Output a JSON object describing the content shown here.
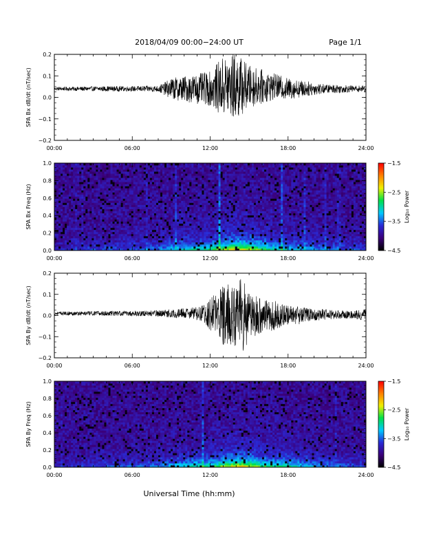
{
  "header": {
    "title": "2018/04/09  00:00−24:00 UT",
    "page": "Page 1/1"
  },
  "footer": {
    "xlabel": "Universal Time (hh:mm)"
  },
  "colors": {
    "trace": "#000000",
    "colormap": [
      "#000000",
      "#3b007a",
      "#2a2ad6",
      "#00c8ff",
      "#00e04a",
      "#f0f000",
      "#ff8000",
      "#ff0000"
    ]
  },
  "chart_data": [
    {
      "type": "line",
      "ylabel": "SPA Bx dB/dt (nT/sec)",
      "x_ticks": [
        "00:00",
        "06:00",
        "12:00",
        "18:00",
        "24:00"
      ],
      "xlim": [
        0,
        24
      ],
      "ylim": [
        -0.2,
        0.2
      ],
      "y_ticks": [
        "0.2",
        "0.1",
        "0.0",
        "−0.1",
        "−0.2"
      ],
      "y_tick_values": [
        0.2,
        0.1,
        0.0,
        -0.1,
        -0.2
      ],
      "series": [
        {
          "x": [
            0,
            2,
            4,
            6,
            8,
            8.5,
            9,
            10,
            11,
            12,
            13,
            13.5,
            14,
            14.5,
            15,
            16,
            17,
            18,
            19,
            20,
            21,
            22,
            23,
            24
          ],
          "center": [
            0.04,
            0.04,
            0.04,
            0.04,
            0.04,
            0.04,
            0.04,
            0.04,
            0.04,
            0.04,
            0.05,
            0.05,
            0.05,
            0.05,
            0.05,
            0.05,
            0.05,
            0.04,
            0.04,
            0.04,
            0.04,
            0.04,
            0.04,
            0.04
          ],
          "amplitude": [
            0.008,
            0.01,
            0.012,
            0.012,
            0.015,
            0.03,
            0.05,
            0.06,
            0.07,
            0.08,
            0.14,
            0.15,
            0.16,
            0.13,
            0.1,
            0.08,
            0.06,
            0.05,
            0.04,
            0.03,
            0.02,
            0.02,
            0.015,
            0.015
          ]
        }
      ]
    },
    {
      "type": "heatmap",
      "ylabel": "SPA Bx Freq (Hz)",
      "x_ticks": [
        "00:00",
        "06:00",
        "12:00",
        "18:00",
        "24:00"
      ],
      "xlim": [
        0,
        24
      ],
      "ylim": [
        0.0,
        1.0
      ],
      "y_ticks": [
        "1.0",
        "0.8",
        "0.6",
        "0.4",
        "0.2",
        "0.0"
      ],
      "y_tick_values": [
        1.0,
        0.8,
        0.6,
        0.4,
        0.2,
        0.0
      ],
      "colorbar": {
        "label": "Log₁₀ Power",
        "ticks": [
          "−1.5",
          "−2.5",
          "−3.5",
          "−4.5"
        ],
        "tick_values": [
          -1.5,
          -2.5,
          -3.5,
          -4.5
        ],
        "range": [
          -4.5,
          -1.5
        ]
      },
      "activity_hours": [
        0,
        3,
        6,
        8,
        10,
        12,
        13,
        14,
        15,
        16,
        17,
        18,
        20,
        22,
        24
      ],
      "activity": [
        0.1,
        0.2,
        0.25,
        0.3,
        0.5,
        0.6,
        0.8,
        0.95,
        0.9,
        0.7,
        0.55,
        0.5,
        0.35,
        0.25,
        0.2
      ]
    },
    {
      "type": "line",
      "ylabel": "SPA By dB/dt (nT/sec)",
      "x_ticks": [
        "00:00",
        "06:00",
        "12:00",
        "18:00",
        "24:00"
      ],
      "xlim": [
        0,
        24
      ],
      "ylim": [
        -0.2,
        0.2
      ],
      "y_ticks": [
        "0.2",
        "0.1",
        "0.0",
        "−0.1",
        "−0.2"
      ],
      "y_tick_values": [
        0.2,
        0.1,
        0.0,
        -0.1,
        -0.2
      ],
      "series": [
        {
          "x": [
            0,
            2,
            4,
            6,
            8,
            9,
            10,
            11,
            11.5,
            12,
            12.5,
            13,
            14,
            14.5,
            15,
            16,
            17,
            18,
            19,
            20,
            21,
            22,
            23,
            24
          ],
          "center": [
            0.01,
            0.01,
            0.01,
            0.01,
            0.01,
            0.01,
            0.01,
            0.01,
            0.01,
            0.005,
            0.0,
            0.0,
            0.0,
            0.0,
            0.0,
            0.0,
            0.0,
            0.0,
            0.0,
            0.005,
            0.005,
            0.005,
            0.005,
            0.005
          ],
          "amplitude": [
            0.008,
            0.01,
            0.012,
            0.012,
            0.015,
            0.02,
            0.025,
            0.03,
            0.04,
            0.08,
            0.12,
            0.14,
            0.16,
            0.19,
            0.12,
            0.08,
            0.07,
            0.05,
            0.04,
            0.03,
            0.025,
            0.02,
            0.02,
            0.03
          ]
        }
      ]
    },
    {
      "type": "heatmap",
      "ylabel": "SPA By Freq (Hz)",
      "x_ticks": [
        "00:00",
        "06:00",
        "12:00",
        "18:00",
        "24:00"
      ],
      "xlim": [
        0,
        24
      ],
      "ylim": [
        0.0,
        1.0
      ],
      "y_ticks": [
        "1.0",
        "0.8",
        "0.6",
        "0.4",
        "0.2",
        "0.0"
      ],
      "y_tick_values": [
        1.0,
        0.8,
        0.6,
        0.4,
        0.2,
        0.0
      ],
      "colorbar": {
        "label": "Log₁₀ Power",
        "ticks": [
          "−1.5",
          "−2.5",
          "−3.5",
          "−4.5"
        ],
        "tick_values": [
          -1.5,
          -2.5,
          -3.5,
          -4.5
        ],
        "range": [
          -4.5,
          -1.5
        ]
      },
      "activity_hours": [
        0,
        3,
        6,
        8,
        10,
        12,
        13,
        14,
        15,
        16,
        17,
        18,
        20,
        22,
        24
      ],
      "activity": [
        0.1,
        0.2,
        0.25,
        0.3,
        0.5,
        0.6,
        0.8,
        0.95,
        0.9,
        0.7,
        0.6,
        0.55,
        0.4,
        0.25,
        0.2
      ]
    }
  ]
}
